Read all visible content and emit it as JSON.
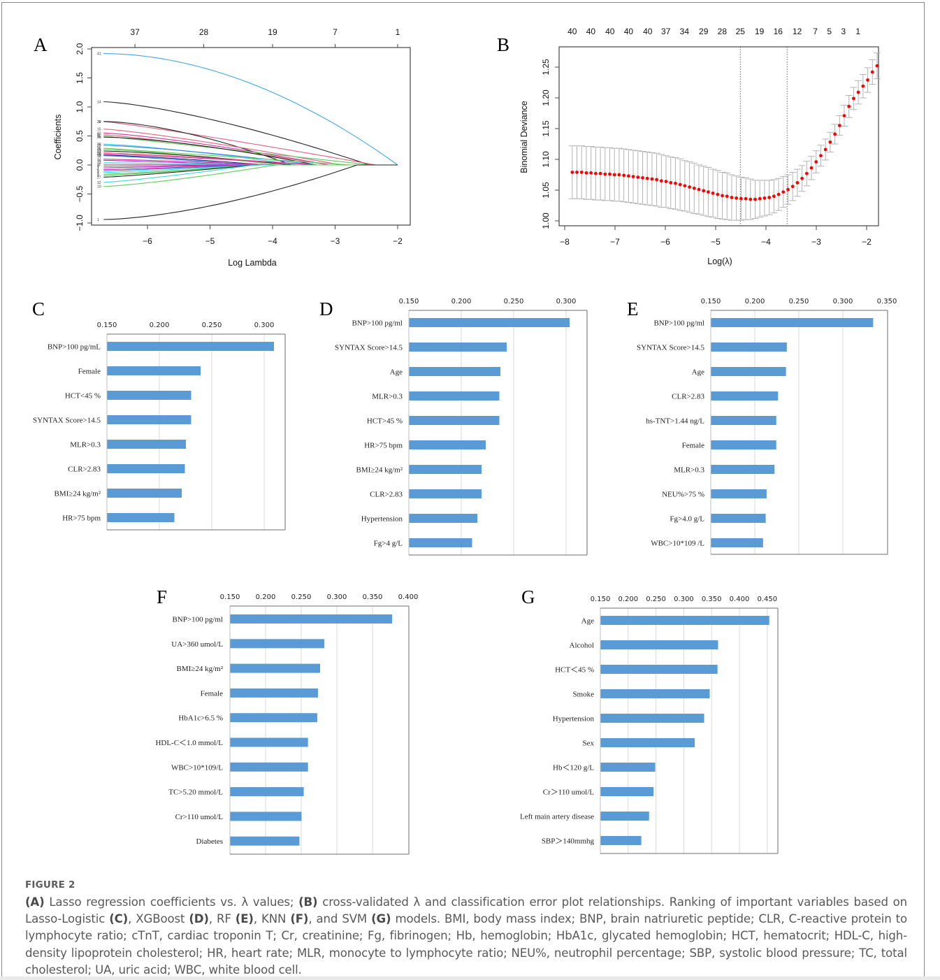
{
  "figure": {
    "label": "FIGURE 2",
    "caption_parts": [
      {
        "t": "(A)",
        "b": true
      },
      {
        "t": " Lasso regression coefficients vs. λ values; "
      },
      {
        "t": "(B)",
        "b": true
      },
      {
        "t": " cross-validated λ and classification error plot relationships. Ranking of important variables based on Lasso-Logistic "
      },
      {
        "t": "(C)",
        "b": true
      },
      {
        "t": ", XGBoost "
      },
      {
        "t": "(D)",
        "b": true
      },
      {
        "t": ", RF "
      },
      {
        "t": "(E)",
        "b": true
      },
      {
        "t": ", KNN "
      },
      {
        "t": "(F)",
        "b": true
      },
      {
        "t": ", and SVM "
      },
      {
        "t": "(G)",
        "b": true
      },
      {
        "t": " models. BMI, body mass index; BNP, brain natriuretic peptide; CLR, C-reactive protein to lymphocyte ratio; cTnT, cardiac troponin T; Cr, creatinine; Fg, fibrinogen; Hb, hemoglobin; HbA1c, glycated hemoglobin; HCT, hematocrit; HDL-C, high-density lipoprotein cholesterol; HR, heart rate; MLR, monocyte to lymphocyte ratio; NEU%, neutrophil percentage; SBP, systolic blood pressure; TC, total cholesterol; UA, uric acid; WBC, white blood cell."
      }
    ]
  },
  "colors": {
    "bar": "#5b9bd5",
    "grid": "#d9d9d9",
    "cv_point": "#ff0000",
    "cv_errorbar": "#b3b3b3",
    "caption_text": "#595959"
  },
  "chart_data": [
    {
      "id": "A",
      "panel_label": "A",
      "type": "line",
      "title": "",
      "xlabel": "Log Lambda",
      "ylabel": "Coefficients",
      "xlim": [
        -6.8,
        -1.8
      ],
      "ylim": [
        -1.05,
        2.05
      ],
      "xticks": [
        -6,
        -5,
        -4,
        -3,
        -2
      ],
      "yticks": [
        -1.0,
        -0.5,
        0.0,
        0.5,
        1.0,
        1.5,
        2.0
      ],
      "ytick_labels": [
        "−1.0",
        "−0.5",
        "0.0",
        "0.5",
        "1.0",
        "1.5",
        "2.0"
      ],
      "xtick_labels": [
        "−6",
        "−5",
        "−4",
        "−3",
        "−2"
      ],
      "top_axis": {
        "positions": [
          -6.2,
          -5.1,
          -4.0,
          -3.0,
          -2.0
        ],
        "labels": [
          "37",
          "28",
          "19",
          "7",
          "1"
        ]
      },
      "x_start": -6.7,
      "series": [
        {
          "name": "41",
          "color": "#3fa6e8",
          "start": 1.92,
          "zero_at": -2.0,
          "shape": 1.9
        },
        {
          "name": "14",
          "color": "#222222",
          "start": 1.09,
          "zero_at": -2.45,
          "shape": 1.4
        },
        {
          "name": "39",
          "color": "#e0607e",
          "start": 0.75,
          "zero_at": -2.35,
          "shape": 1.1
        },
        {
          "name": "32",
          "color": "#222222",
          "start": 0.75,
          "zero_at": -3.7,
          "shape": 1.6
        },
        {
          "name": "15",
          "color": "#e0607e",
          "start": 0.62,
          "zero_at": -2.9,
          "shape": 1.2
        },
        {
          "name": "40",
          "color": "#d8339a",
          "start": 0.55,
          "zero_at": -3.1,
          "shape": 1.3
        },
        {
          "name": "9",
          "color": "#e0607e",
          "start": 0.52,
          "zero_at": -3.1,
          "shape": 1.2
        },
        {
          "name": "35",
          "color": "#61c95d",
          "start": 0.5,
          "zero_at": -2.42,
          "shape": 1.0
        },
        {
          "name": "36",
          "color": "#222222",
          "start": 0.48,
          "zero_at": -3.3,
          "shape": 1.5
        },
        {
          "name": "30",
          "color": "#3fd6e0",
          "start": 0.36,
          "zero_at": -3.6,
          "shape": 1.3
        },
        {
          "name": "28",
          "color": "#3b7fe0",
          "start": 0.34,
          "zero_at": -3.3,
          "shape": 1.3
        },
        {
          "name": "26",
          "color": "#61c95d",
          "start": 0.29,
          "zero_at": -2.75,
          "shape": 1.0
        },
        {
          "name": "25",
          "color": "#61c95d",
          "start": 0.27,
          "zero_at": -3.9,
          "shape": 1.3
        },
        {
          "name": "23",
          "color": "#222222",
          "start": 0.24,
          "zero_at": -3.7,
          "shape": 1.4
        },
        {
          "name": "22",
          "color": "#e0607e",
          "start": 0.21,
          "zero_at": -3.3,
          "shape": 1.2
        },
        {
          "name": "20",
          "color": "#d8339a",
          "start": 0.19,
          "zero_at": -3.3,
          "shape": 1.2
        },
        {
          "name": "19",
          "color": "#222288",
          "start": 0.17,
          "zero_at": -4.1,
          "shape": 1.3
        },
        {
          "name": "18",
          "color": "#3b7fe0",
          "start": 0.16,
          "zero_at": -4.3,
          "shape": 1.2
        },
        {
          "name": "17",
          "color": "#d8339a",
          "start": 0.1,
          "zero_at": -3.95,
          "shape": 1.2
        },
        {
          "name": "16",
          "color": "#9933cc",
          "start": 0.08,
          "zero_at": -4.3,
          "shape": 1.1
        },
        {
          "name": "13",
          "color": "#3fd6e0",
          "start": 0.04,
          "zero_at": -4.3,
          "shape": 1.1
        },
        {
          "name": "11",
          "color": "#e0607e",
          "start": 0.01,
          "zero_at": -4.4,
          "shape": 1.0
        },
        {
          "name": "8",
          "color": "#d8339a",
          "start": -0.02,
          "zero_at": -4.6,
          "shape": 1.0
        },
        {
          "name": "7",
          "color": "#9933cc",
          "start": -0.05,
          "zero_at": -4.5,
          "shape": 1.0
        },
        {
          "name": "6",
          "color": "#d8339a",
          "start": -0.08,
          "zero_at": -4.4,
          "shape": 1.1
        },
        {
          "name": "5",
          "color": "#3b7fe0",
          "start": -0.1,
          "zero_at": -4.3,
          "shape": 1.1
        },
        {
          "name": "4",
          "color": "#3fd6e0",
          "start": -0.13,
          "zero_at": -4.2,
          "shape": 1.1
        },
        {
          "name": "3",
          "color": "#61c95d",
          "start": -0.16,
          "zero_at": -4.2,
          "shape": 1.2
        },
        {
          "name": "2",
          "color": "#61c95d",
          "start": -0.18,
          "zero_at": -4.3,
          "shape": 1.2
        },
        {
          "name": "27",
          "color": "#222222",
          "start": -0.21,
          "zero_at": -4.3,
          "shape": 1.2
        },
        {
          "name": "12",
          "color": "#3fd6e0",
          "start": -0.3,
          "zero_at": -4.3,
          "shape": 1.2
        },
        {
          "name": "10",
          "color": "#61c95d",
          "start": -0.37,
          "zero_at": -3.95,
          "shape": 1.3
        },
        {
          "name": "1",
          "color": "#222222",
          "start": -0.94,
          "zero_at": -2.65,
          "shape": 1.6
        }
      ]
    },
    {
      "id": "B",
      "panel_label": "B",
      "type": "scatter",
      "title": "",
      "xlabel": "Log(λ)",
      "ylabel": "Binomial Deviance",
      "xlim": [
        -8.1,
        -1.75
      ],
      "ylim": [
        0.99,
        1.28
      ],
      "xticks": [
        -8,
        -7,
        -6,
        -5,
        -4,
        -3,
        -2
      ],
      "xtick_labels": [
        "−8",
        "−7",
        "−6",
        "−5",
        "−4",
        "−3",
        "−2"
      ],
      "yticks": [
        1.0,
        1.05,
        1.1,
        1.15,
        1.2,
        1.25
      ],
      "ytick_labels": [
        "1.00",
        "1.05",
        "1.10",
        "1.15",
        "1.20",
        "1.25"
      ],
      "top_axis": {
        "positions": [
          -7.85,
          -7.48,
          -7.1,
          -6.73,
          -6.35,
          -5.99,
          -5.62,
          -5.24,
          -4.87,
          -4.51,
          -4.13,
          -3.76,
          -3.38,
          -3.02,
          -2.74,
          -2.46,
          -2.17
        ],
        "labels": [
          "40",
          "40",
          "40",
          "40",
          "40",
          "37",
          "34",
          "29",
          "28",
          "25",
          "19",
          "16",
          "12",
          "7",
          "5",
          "3",
          "1"
        ]
      },
      "vlines": [
        -4.51,
        -3.58
      ],
      "points": {
        "x_start": -7.85,
        "x_step": 0.0932,
        "mean": [
          1.079,
          1.079,
          1.079,
          1.078,
          1.078,
          1.077,
          1.077,
          1.076,
          1.076,
          1.075,
          1.075,
          1.074,
          1.073,
          1.072,
          1.071,
          1.07,
          1.069,
          1.068,
          1.067,
          1.065,
          1.064,
          1.062,
          1.061,
          1.059,
          1.057,
          1.055,
          1.053,
          1.051,
          1.049,
          1.047,
          1.045,
          1.043,
          1.041,
          1.04,
          1.038,
          1.037,
          1.036,
          1.036,
          1.035,
          1.035,
          1.036,
          1.037,
          1.038,
          1.04,
          1.043,
          1.047,
          1.051,
          1.056,
          1.062,
          1.069,
          1.077,
          1.086,
          1.096,
          1.106,
          1.116,
          1.128,
          1.141,
          1.155,
          1.171,
          1.186,
          1.199,
          1.209,
          1.219,
          1.229,
          1.242,
          1.252
        ],
        "halfwidth": [
          0.043,
          0.043,
          0.043,
          0.043,
          0.043,
          0.043,
          0.043,
          0.043,
          0.043,
          0.043,
          0.043,
          0.043,
          0.043,
          0.043,
          0.043,
          0.043,
          0.043,
          0.043,
          0.043,
          0.043,
          0.042,
          0.042,
          0.042,
          0.042,
          0.041,
          0.041,
          0.041,
          0.04,
          0.04,
          0.04,
          0.039,
          0.039,
          0.038,
          0.038,
          0.037,
          0.036,
          0.035,
          0.034,
          0.033,
          0.031,
          0.03,
          0.029,
          0.028,
          0.027,
          0.026,
          0.025,
          0.024,
          0.023,
          0.022,
          0.021,
          0.02,
          0.019,
          0.018,
          0.017,
          0.017,
          0.016,
          0.016,
          0.016,
          0.017,
          0.018,
          0.018,
          0.019,
          0.019,
          0.02,
          0.02,
          0.021
        ]
      }
    },
    {
      "id": "C",
      "panel_label": "C",
      "type": "bar",
      "title": "",
      "xlabel": "",
      "ylabel": "",
      "xlim": [
        0.15,
        0.32
      ],
      "ticks": [
        0.15,
        0.2,
        0.25,
        0.3
      ],
      "tick_labels": [
        "0.150",
        "0.200",
        "0.250",
        "0.300"
      ],
      "categories": [
        "BNP>100 pg/mL",
        "Female",
        "HCT<45 %",
        "SYNTAX Score>14.5",
        "MLR>0.3",
        "CLR>2.83",
        "BMI≥24 kg/m²",
        "HR>75 bpm"
      ],
      "values": [
        0.309,
        0.239,
        0.23,
        0.23,
        0.225,
        0.224,
        0.221,
        0.214
      ]
    },
    {
      "id": "D",
      "panel_label": "D",
      "type": "bar",
      "title": "",
      "xlabel": "",
      "ylabel": "",
      "xlim": [
        0.15,
        0.32
      ],
      "ticks": [
        0.15,
        0.2,
        0.25,
        0.3
      ],
      "tick_labels": [
        "0.150",
        "0.200",
        "0.250",
        "0.300"
      ],
      "categories": [
        "BNP>100 pg/ml",
        "SYNTAX Score>14.5",
        "Age",
        "MLR>0.3",
        "HCT>45 %",
        "HR>75 bpm",
        "BMI≥24 kg/m²",
        "CLR>2.83",
        "Hypertension",
        "Fg>4 g/L"
      ],
      "values": [
        0.303,
        0.243,
        0.237,
        0.236,
        0.236,
        0.223,
        0.219,
        0.219,
        0.215,
        0.21
      ]
    },
    {
      "id": "E",
      "panel_label": "E",
      "type": "bar",
      "title": "",
      "xlabel": "",
      "ylabel": "",
      "xlim": [
        0.15,
        0.35
      ],
      "ticks": [
        0.15,
        0.2,
        0.25,
        0.3,
        0.35
      ],
      "tick_labels": [
        "0.150",
        "0.200",
        "0.250",
        "0.300",
        "0.350"
      ],
      "categories": [
        "BNP>100 pg/ml",
        "SYNTAX Score>14.5",
        "Age",
        "CLR>2.83",
        "hs-TNT>1.44 ng/L",
        "Female",
        "MLR>0.3",
        "NEU%>75 %",
        "Fg>4.0 g/L",
        "WBC>10*109 /L"
      ],
      "values": [
        0.334,
        0.236,
        0.235,
        0.226,
        0.224,
        0.224,
        0.222,
        0.213,
        0.212,
        0.209
      ]
    },
    {
      "id": "F",
      "panel_label": "F",
      "type": "bar",
      "title": "",
      "xlabel": "",
      "ylabel": "",
      "xlim": [
        0.15,
        0.4
      ],
      "ticks": [
        0.15,
        0.2,
        0.25,
        0.3,
        0.35,
        0.4
      ],
      "tick_labels": [
        "0.150",
        "0.200",
        "0.250",
        "0.300",
        "0.350",
        "0.400"
      ],
      "categories": [
        "BNP>100 pg/ml",
        "UA>360 umol/L",
        "BMI≥24 kg/m²",
        "Female",
        "HbA1c>6.5 %",
        "HDL-C＜1.0 mmol/L",
        "WBC>10*109/L",
        "TC>5.20 mmol/L",
        "Cr>110 umol/L",
        "Diabetes"
      ],
      "values": [
        0.377,
        0.282,
        0.276,
        0.273,
        0.272,
        0.259,
        0.259,
        0.253,
        0.25,
        0.247
      ]
    },
    {
      "id": "G",
      "panel_label": "G",
      "type": "bar",
      "title": "",
      "xlabel": "",
      "ylabel": "",
      "xlim": [
        0.15,
        0.469
      ],
      "ticks": [
        0.15,
        0.2,
        0.25,
        0.3,
        0.35,
        0.4,
        0.45
      ],
      "tick_labels": [
        "0.150",
        "0.200",
        "0.250",
        "0.300",
        "0.350",
        "0.400",
        "0.450"
      ],
      "categories": [
        "Age",
        "Alcohol",
        "HCT＜45 %",
        "Smoke",
        "Hypertension",
        "Sex",
        "Hb＜120 g/L",
        "Cr＞110 umol/L",
        "Left main artery disease",
        "SBP＞140mmhg"
      ],
      "values": [
        0.453,
        0.361,
        0.36,
        0.346,
        0.336,
        0.319,
        0.248,
        0.245,
        0.237,
        0.223
      ]
    }
  ]
}
